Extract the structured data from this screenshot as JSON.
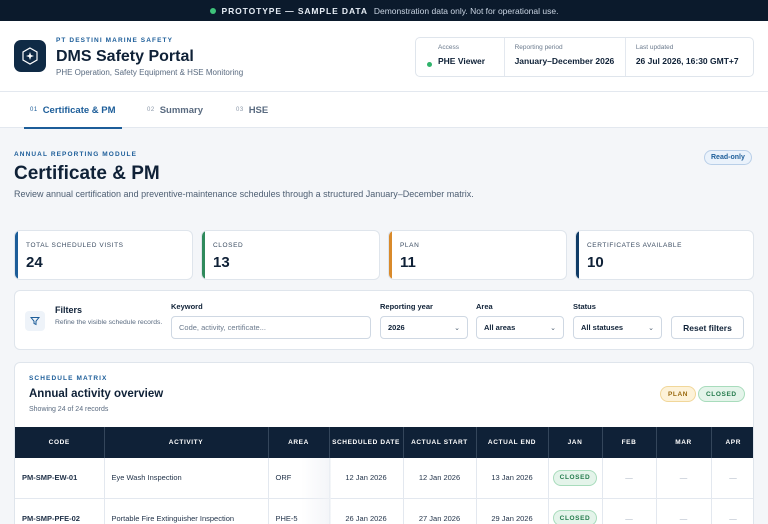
{
  "banner": {
    "title": "PROTOTYPE — SAMPLE DATA",
    "note": "Demonstration data only. Not for operational use.",
    "dot_color": "#3ec27a"
  },
  "header": {
    "org": "PT DESTINI MARINE SAFETY",
    "title": "DMS Safety Portal",
    "subtitle": "PHE Operation, Safety Equipment & HSE Monitoring",
    "logo_icon": "compass-star-icon",
    "meta": {
      "access": {
        "label": "Access",
        "value": "PHE Viewer"
      },
      "period": {
        "label": "Reporting period",
        "value": "January–December 2026"
      },
      "updated": {
        "label": "Last updated",
        "value": "26 Jul 2026, 16:30 GMT+7"
      }
    }
  },
  "tabs": [
    {
      "num": "01",
      "label": "Certificate & PM",
      "active": true
    },
    {
      "num": "02",
      "label": "Summary",
      "active": false
    },
    {
      "num": "03",
      "label": "HSE",
      "active": false
    }
  ],
  "module": {
    "label": "ANNUAL REPORTING MODULE",
    "title": "Certificate & PM",
    "description": "Review annual certification and preventive-maintenance schedules through a structured January–December matrix.",
    "badge": "Read-only"
  },
  "stats": [
    {
      "label": "TOTAL SCHEDULED VISITS",
      "value": "24",
      "color": "#1c5d99"
    },
    {
      "label": "CLOSED",
      "value": "13",
      "color": "#2f8a5c"
    },
    {
      "label": "PLAN",
      "value": "11",
      "color": "#d98a2b"
    },
    {
      "label": "CERTIFICATES AVAILABLE",
      "value": "10",
      "color": "#0f3b66"
    }
  ],
  "filters": {
    "title": "Filters",
    "subtitle": "Refine the visible schedule records.",
    "icon": "funnel-icon",
    "keyword": {
      "label": "Keyword",
      "placeholder": "Code, activity, certificate..."
    },
    "year": {
      "label": "Reporting year",
      "value": "2026"
    },
    "area": {
      "label": "Area",
      "value": "All areas"
    },
    "status": {
      "label": "Status",
      "value": "All statuses"
    },
    "reset_label": "Reset filters"
  },
  "matrix": {
    "label": "SCHEDULE MATRIX",
    "title": "Annual activity overview",
    "count": "Showing 24 of 24 records",
    "legend": {
      "plan": "PLAN",
      "closed": "CLOSED"
    },
    "columns": [
      "CODE",
      "ACTIVITY",
      "AREA",
      "SCHEDULED DATE",
      "ACTUAL START",
      "ACTUAL END",
      "JAN",
      "FEB",
      "MAR",
      "APR"
    ],
    "rows": [
      {
        "code": "PM-SMP-EW-01",
        "activity": "Eye Wash Inspection",
        "area": "ORF",
        "scheduled": "12 Jan 2026",
        "start": "12 Jan 2026",
        "end": "13 Jan 2026",
        "jan": "CLOSED",
        "feb": "—",
        "mar": "—",
        "apr": "—"
      },
      {
        "code": "PM-SMP-PFE-02",
        "activity": "Portable Fire Extinguisher Inspection",
        "area": "PHE-5",
        "scheduled": "26 Jan 2026",
        "start": "27 Jan 2026",
        "end": "29 Jan 2026",
        "jan": "CLOSED",
        "feb": "—",
        "mar": "—",
        "apr": "—"
      }
    ]
  }
}
